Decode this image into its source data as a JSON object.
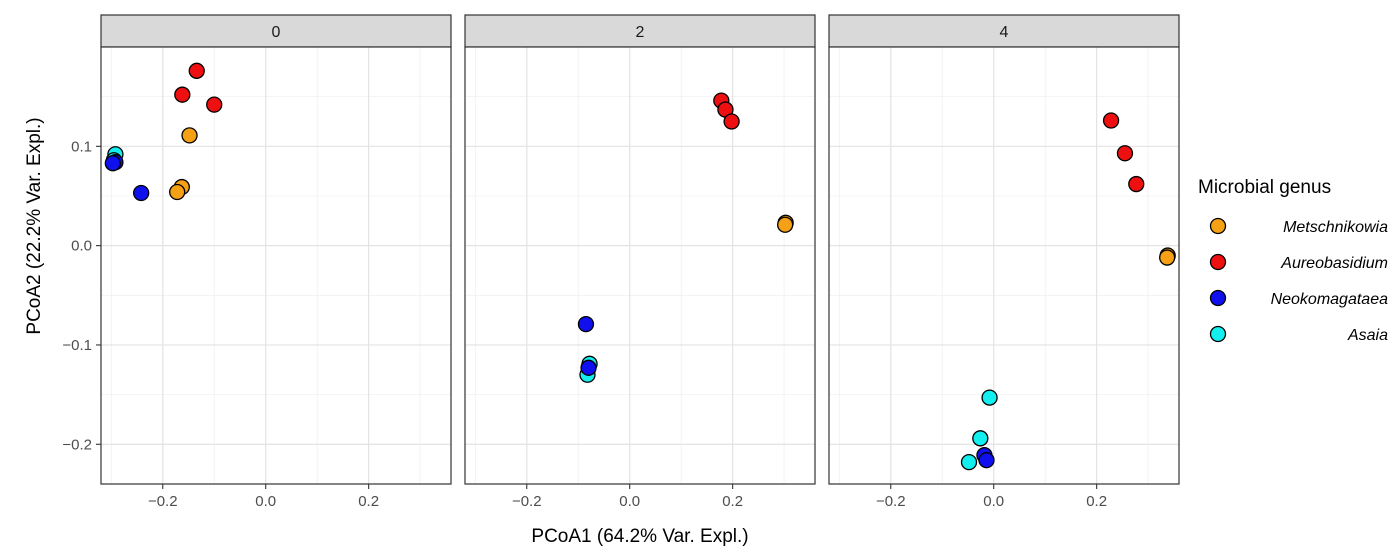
{
  "chart_data": {
    "type": "scatter",
    "xlabel": "PCoA1 (64.2% Var. Expl.)",
    "ylabel": "PCoA2 (22.2% Var. Expl.)",
    "xlim": [
      -0.32,
      0.36
    ],
    "ylim": [
      -0.24,
      0.2
    ],
    "x_ticks": [
      -0.2,
      0.0,
      0.2
    ],
    "x_tick_labels": [
      "−0.2",
      "0.0",
      "0.2"
    ],
    "y_ticks": [
      0.1,
      0.0,
      -0.1,
      -0.2
    ],
    "y_tick_labels": [
      "0.1",
      "0.0",
      "−0.1",
      "−0.2"
    ],
    "grid": true,
    "legend": {
      "title": "Microbial genus",
      "position": "right",
      "entries": [
        "Metschnikowia",
        "Aureobasidium",
        "Neokomagataea",
        "Asaia"
      ]
    },
    "colors": {
      "Metschnikowia": "#f5a015",
      "Aureobasidium": "#ee1010",
      "Neokomagataea": "#1010ee",
      "Asaia": "#13eeee"
    },
    "panels": [
      {
        "label": "0",
        "points": [
          {
            "genus": "Aureobasidium",
            "x": -0.134,
            "y": 0.176
          },
          {
            "genus": "Aureobasidium",
            "x": -0.162,
            "y": 0.152
          },
          {
            "genus": "Aureobasidium",
            "x": -0.1,
            "y": 0.142
          },
          {
            "genus": "Metschnikowia",
            "x": -0.148,
            "y": 0.111
          },
          {
            "genus": "Metschnikowia",
            "x": -0.163,
            "y": 0.059
          },
          {
            "genus": "Metschnikowia",
            "x": -0.172,
            "y": 0.054
          },
          {
            "genus": "Asaia",
            "x": -0.292,
            "y": 0.092
          },
          {
            "genus": "Asaia",
            "x": -0.295,
            "y": 0.086
          },
          {
            "genus": "Neokomagataea",
            "x": -0.292,
            "y": 0.084
          },
          {
            "genus": "Neokomagataea",
            "x": -0.297,
            "y": 0.083
          },
          {
            "genus": "Neokomagataea",
            "x": -0.242,
            "y": 0.053
          }
        ]
      },
      {
        "label": "2",
        "points": [
          {
            "genus": "Aureobasidium",
            "x": 0.178,
            "y": 0.146
          },
          {
            "genus": "Aureobasidium",
            "x": 0.186,
            "y": 0.137
          },
          {
            "genus": "Aureobasidium",
            "x": 0.198,
            "y": 0.125
          },
          {
            "genus": "Metschnikowia",
            "x": 0.303,
            "y": 0.023
          },
          {
            "genus": "Metschnikowia",
            "x": 0.302,
            "y": 0.021
          },
          {
            "genus": "Neokomagataea",
            "x": -0.085,
            "y": -0.079
          },
          {
            "genus": "Asaia",
            "x": -0.078,
            "y": -0.119
          },
          {
            "genus": "Asaia",
            "x": -0.082,
            "y": -0.13
          },
          {
            "genus": "Neokomagataea",
            "x": -0.08,
            "y": -0.123
          }
        ]
      },
      {
        "label": "4",
        "points": [
          {
            "genus": "Aureobasidium",
            "x": 0.228,
            "y": 0.126
          },
          {
            "genus": "Aureobasidium",
            "x": 0.255,
            "y": 0.093
          },
          {
            "genus": "Aureobasidium",
            "x": 0.277,
            "y": 0.062
          },
          {
            "genus": "Metschnikowia",
            "x": 0.338,
            "y": -0.01
          },
          {
            "genus": "Metschnikowia",
            "x": 0.337,
            "y": -0.012
          },
          {
            "genus": "Asaia",
            "x": -0.008,
            "y": -0.153
          },
          {
            "genus": "Asaia",
            "x": -0.026,
            "y": -0.194
          },
          {
            "genus": "Neokomagataea",
            "x": -0.018,
            "y": -0.211
          },
          {
            "genus": "Neokomagataea",
            "x": -0.014,
            "y": -0.216
          },
          {
            "genus": "Asaia",
            "x": -0.048,
            "y": -0.218
          }
        ]
      }
    ]
  }
}
